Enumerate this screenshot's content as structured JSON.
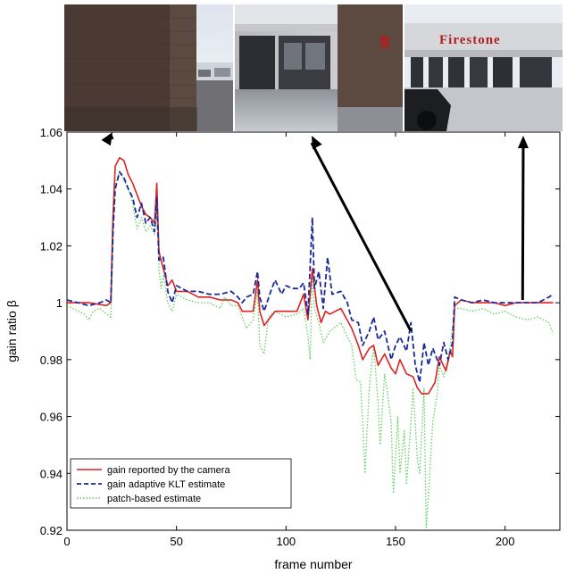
{
  "chart_data": {
    "type": "line",
    "xlabel": "frame number",
    "ylabel": "gain ratio β",
    "xlim": [
      0,
      225
    ],
    "ylim": [
      0.92,
      1.06
    ],
    "xticks": [
      0,
      50,
      100,
      150,
      200
    ],
    "yticks": [
      0.92,
      0.94,
      0.96,
      0.98,
      1,
      1.02,
      1.04,
      1.06
    ],
    "ytick_labels": [
      "0.92",
      "0.94",
      "0.96",
      "0.98",
      "1",
      "1.02",
      "1.04",
      "1.06"
    ],
    "legend_position": "bottom-left",
    "grid": false,
    "series": [
      {
        "name": "gain reported by the camera",
        "color": "#dd2222",
        "style": "solid",
        "points": [
          [
            0,
            1.0
          ],
          [
            5,
            1.0
          ],
          [
            10,
            1.0
          ],
          [
            18,
            0.999
          ],
          [
            20,
            1.0
          ],
          [
            21,
            1.03
          ],
          [
            22,
            1.048
          ],
          [
            24,
            1.051
          ],
          [
            26,
            1.05
          ],
          [
            28,
            1.045
          ],
          [
            30,
            1.042
          ],
          [
            32,
            1.038
          ],
          [
            34,
            1.034
          ],
          [
            36,
            1.031
          ],
          [
            38,
            1.03
          ],
          [
            40,
            1.028
          ],
          [
            41,
            1.042
          ],
          [
            42,
            1.018
          ],
          [
            44,
            1.012
          ],
          [
            46,
            1.006
          ],
          [
            48,
            1.008
          ],
          [
            50,
            1.004
          ],
          [
            55,
            1.004
          ],
          [
            60,
            1.002
          ],
          [
            65,
            1.002
          ],
          [
            70,
            1.001
          ],
          [
            75,
            1.001
          ],
          [
            78,
            1.0
          ],
          [
            80,
            0.997
          ],
          [
            85,
            0.997
          ],
          [
            87,
            1.008
          ],
          [
            88,
            0.997
          ],
          [
            90,
            0.992
          ],
          [
            95,
            0.997
          ],
          [
            100,
            0.997
          ],
          [
            105,
            0.997
          ],
          [
            108,
            1.003
          ],
          [
            110,
            0.994
          ],
          [
            112,
            1.012
          ],
          [
            114,
            0.999
          ],
          [
            116,
            0.993
          ],
          [
            118,
            0.997
          ],
          [
            120,
            0.996
          ],
          [
            125,
            0.998
          ],
          [
            130,
            0.991
          ],
          [
            133,
            0.985
          ],
          [
            135,
            0.98
          ],
          [
            138,
            0.984
          ],
          [
            140,
            0.985
          ],
          [
            142,
            0.978
          ],
          [
            145,
            0.982
          ],
          [
            148,
            0.977
          ],
          [
            150,
            0.975
          ],
          [
            152,
            0.98
          ],
          [
            155,
            0.975
          ],
          [
            158,
            0.974
          ],
          [
            160,
            0.97
          ],
          [
            162,
            0.968
          ],
          [
            165,
            0.968
          ],
          [
            168,
            0.972
          ],
          [
            170,
            0.981
          ],
          [
            173,
            0.976
          ],
          [
            175,
            0.983
          ],
          [
            176,
            0.981
          ],
          [
            177,
            0.999
          ],
          [
            180,
            1.001
          ],
          [
            185,
            1.0
          ],
          [
            190,
            1.0
          ],
          [
            195,
            1.0
          ],
          [
            200,
            0.999
          ],
          [
            205,
            1.0
          ],
          [
            210,
            1.0
          ],
          [
            215,
            1.0
          ],
          [
            220,
            1.0
          ],
          [
            222,
            1.0
          ]
        ]
      },
      {
        "name": "gain adaptive KLT estimate",
        "color": "#1a2a9a",
        "style": "dashed",
        "points": [
          [
            0,
            1.001
          ],
          [
            5,
            1.0
          ],
          [
            10,
            0.999
          ],
          [
            15,
            1.0
          ],
          [
            18,
            1.001
          ],
          [
            20,
            1.0
          ],
          [
            21,
            1.025
          ],
          [
            22,
            1.04
          ],
          [
            24,
            1.046
          ],
          [
            26,
            1.044
          ],
          [
            28,
            1.04
          ],
          [
            30,
            1.037
          ],
          [
            32,
            1.03
          ],
          [
            34,
            1.035
          ],
          [
            36,
            1.028
          ],
          [
            38,
            1.03
          ],
          [
            40,
            1.025
          ],
          [
            41,
            1.037
          ],
          [
            42,
            1.015
          ],
          [
            44,
            1.016
          ],
          [
            46,
            1.004
          ],
          [
            48,
            1.0
          ],
          [
            50,
            1.006
          ],
          [
            55,
            1.004
          ],
          [
            60,
            1.004
          ],
          [
            65,
            1.003
          ],
          [
            70,
            1.003
          ],
          [
            75,
            1.004
          ],
          [
            78,
            1.002
          ],
          [
            80,
            1.0
          ],
          [
            82,
            1.002
          ],
          [
            85,
            1.003
          ],
          [
            87,
            1.011
          ],
          [
            88,
            1.002
          ],
          [
            90,
            0.997
          ],
          [
            93,
            1.004
          ],
          [
            95,
            1.008
          ],
          [
            98,
            1.003
          ],
          [
            100,
            1.006
          ],
          [
            103,
            1.005
          ],
          [
            106,
            1.005
          ],
          [
            108,
            1.007
          ],
          [
            110,
            0.996
          ],
          [
            112,
            1.03
          ],
          [
            113,
            1.005
          ],
          [
            115,
            1.011
          ],
          [
            117,
            0.998
          ],
          [
            119,
            1.016
          ],
          [
            121,
            1.003
          ],
          [
            125,
            1.004
          ],
          [
            128,
            1.0
          ],
          [
            130,
            0.994
          ],
          [
            133,
            0.993
          ],
          [
            135,
            0.985
          ],
          [
            138,
            0.99
          ],
          [
            140,
            0.995
          ],
          [
            142,
            0.987
          ],
          [
            145,
            0.99
          ],
          [
            148,
            0.98
          ],
          [
            150,
            0.985
          ],
          [
            152,
            0.988
          ],
          [
            155,
            0.983
          ],
          [
            157,
            0.993
          ],
          [
            159,
            0.978
          ],
          [
            161,
            0.972
          ],
          [
            163,
            0.986
          ],
          [
            165,
            0.978
          ],
          [
            167,
            0.984
          ],
          [
            170,
            0.978
          ],
          [
            172,
            0.986
          ],
          [
            174,
            0.98
          ],
          [
            176,
            0.986
          ],
          [
            177,
            1.002
          ],
          [
            180,
            1.001
          ],
          [
            185,
            1.0
          ],
          [
            190,
            1.001
          ],
          [
            195,
            1.0
          ],
          [
            200,
            1.0
          ],
          [
            205,
            1.0
          ],
          [
            210,
            1.0
          ],
          [
            215,
            1.0
          ],
          [
            220,
            1.002
          ],
          [
            222,
            1.003
          ]
        ]
      },
      {
        "name": "patch-based estimate",
        "color": "#5ecf5e",
        "style": "dotted",
        "points": [
          [
            0,
            0.999
          ],
          [
            5,
            0.997
          ],
          [
            8,
            0.996
          ],
          [
            10,
            0.994
          ],
          [
            12,
            0.997
          ],
          [
            15,
            0.998
          ],
          [
            18,
            0.996
          ],
          [
            20,
            0.995
          ],
          [
            21,
            1.02
          ],
          [
            22,
            1.042
          ],
          [
            24,
            1.046
          ],
          [
            26,
            1.043
          ],
          [
            28,
            1.04
          ],
          [
            30,
            1.035
          ],
          [
            32,
            1.026
          ],
          [
            34,
            1.03
          ],
          [
            36,
            1.025
          ],
          [
            38,
            1.027
          ],
          [
            40,
            1.024
          ],
          [
            41,
            1.033
          ],
          [
            42,
            1.012
          ],
          [
            43,
            1.005
          ],
          [
            44,
            1.01
          ],
          [
            46,
            1.0
          ],
          [
            48,
            0.997
          ],
          [
            50,
            1.003
          ],
          [
            55,
            1.001
          ],
          [
            60,
            1.0
          ],
          [
            65,
            1.0
          ],
          [
            70,
            0.998
          ],
          [
            72,
            1.002
          ],
          [
            75,
            0.999
          ],
          [
            78,
            0.999
          ],
          [
            80,
            0.995
          ],
          [
            82,
            0.991
          ],
          [
            85,
            0.994
          ],
          [
            87,
            1.004
          ],
          [
            88,
            0.985
          ],
          [
            90,
            0.982
          ],
          [
            92,
            0.995
          ],
          [
            95,
            0.997
          ],
          [
            100,
            0.995
          ],
          [
            105,
            0.996
          ],
          [
            108,
            0.998
          ],
          [
            110,
            0.988
          ],
          [
            111,
            0.98
          ],
          [
            112,
            1.01
          ],
          [
            113,
            0.998
          ],
          [
            115,
            0.993
          ],
          [
            117,
            0.986
          ],
          [
            120,
            0.99
          ],
          [
            125,
            0.993
          ],
          [
            128,
            0.988
          ],
          [
            130,
            0.985
          ],
          [
            132,
            0.973
          ],
          [
            134,
            0.972
          ],
          [
            135,
            0.958
          ],
          [
            136,
            0.94
          ],
          [
            138,
            0.97
          ],
          [
            140,
            0.985
          ],
          [
            142,
            0.965
          ],
          [
            143,
            0.95
          ],
          [
            145,
            0.975
          ],
          [
            146,
            0.97
          ],
          [
            148,
            0.958
          ],
          [
            149,
            0.933
          ],
          [
            151,
            0.96
          ],
          [
            152,
            0.94
          ],
          [
            154,
            0.955
          ],
          [
            155,
            0.936
          ],
          [
            157,
            0.958
          ],
          [
            158,
            0.97
          ],
          [
            160,
            0.945
          ],
          [
            161,
            0.94
          ],
          [
            163,
            0.97
          ],
          [
            164,
            0.921
          ],
          [
            165,
            0.932
          ],
          [
            167,
            0.958
          ],
          [
            169,
            0.968
          ],
          [
            170,
            0.978
          ],
          [
            172,
            0.974
          ],
          [
            175,
            0.985
          ],
          [
            177,
            0.998
          ],
          [
            180,
            0.998
          ],
          [
            185,
            0.997
          ],
          [
            190,
            0.998
          ],
          [
            195,
            0.996
          ],
          [
            200,
            0.997
          ],
          [
            205,
            0.995
          ],
          [
            210,
            0.994
          ],
          [
            215,
            0.995
          ],
          [
            220,
            0.993
          ],
          [
            222,
            0.989
          ]
        ]
      }
    ],
    "annotations": {
      "arrows_from_frame": [
        [
          20,
          1.059
        ],
        [
          157,
          0.99
        ],
        [
          208,
          1.001
        ]
      ],
      "sign_text": "Firestone"
    }
  }
}
